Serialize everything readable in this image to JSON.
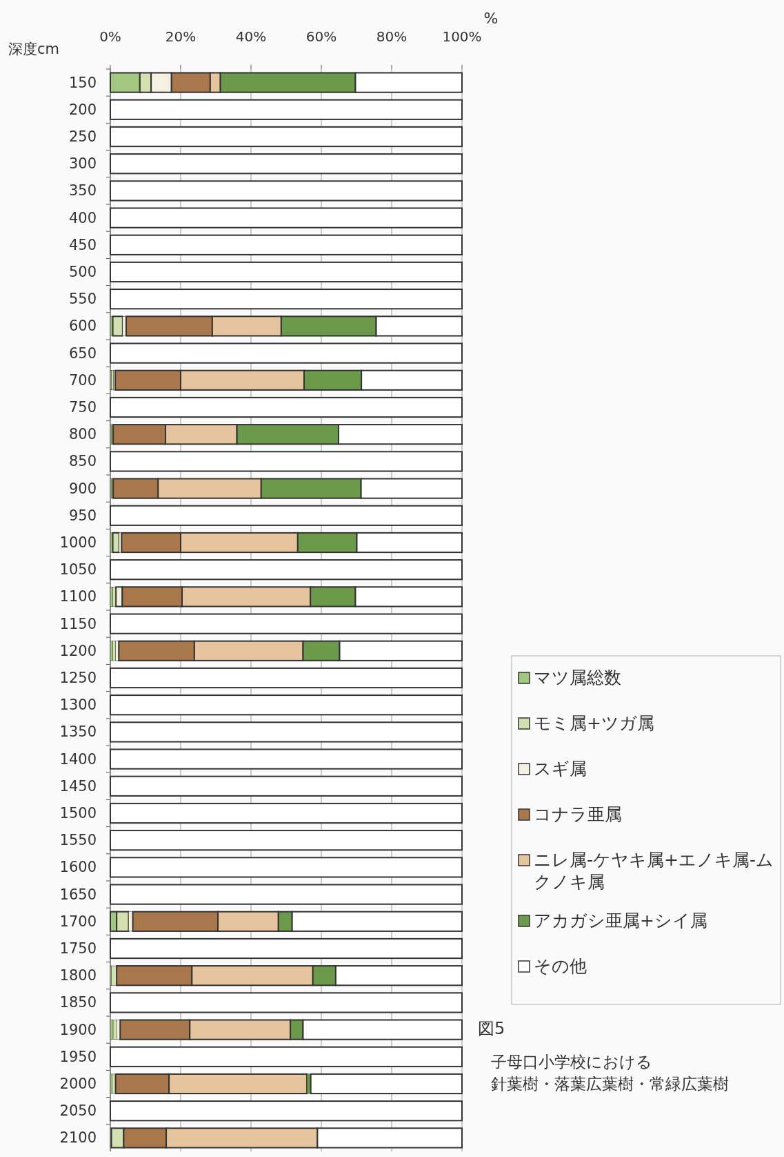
{
  "chart_data": {
    "type": "bar",
    "orientation": "horizontal",
    "stacked": true,
    "xlabel": "%",
    "ylabel": "深度cm",
    "categories": [
      "150",
      "200",
      "250",
      "300",
      "350",
      "400",
      "450",
      "500",
      "550",
      "600",
      "650",
      "700",
      "750",
      "800",
      "850",
      "900",
      "950",
      "1000",
      "1050",
      "1100",
      "1150",
      "1200",
      "1250",
      "1300",
      "1350",
      "1400",
      "1450",
      "1500",
      "1550",
      "1600",
      "1650",
      "1700",
      "1750",
      "1800",
      "1850",
      "1900",
      "1950",
      "2000",
      "2050",
      "2100"
    ],
    "xlim": [
      0,
      100
    ],
    "xticks": [
      {
        "value": 0,
        "label": "0%"
      },
      {
        "value": 20,
        "label": "20%"
      },
      {
        "value": 40,
        "label": "40%"
      },
      {
        "value": 60,
        "label": "60%"
      },
      {
        "value": 80,
        "label": "80%"
      },
      {
        "value": 100,
        "label": "100%"
      }
    ],
    "grid": "x",
    "legend": "right",
    "series": [
      {
        "name": "マツ属総数",
        "color": "#a3c77e",
        "values": [
          8.4,
          0,
          0,
          0,
          0,
          0,
          0,
          0,
          0,
          0.7,
          0,
          0.3,
          0,
          0.4,
          0,
          0.4,
          0,
          0.7,
          0,
          0.7,
          0,
          0.7,
          0,
          0,
          0,
          0,
          0,
          0,
          0,
          0,
          0,
          1.8,
          0,
          0.3,
          0,
          0.8,
          0,
          0.5,
          0,
          0.3
        ]
      },
      {
        "name": "モミ属+ツガ属",
        "color": "#d3e0b0",
        "values": [
          3.2,
          0,
          0,
          0,
          0,
          0,
          0,
          0,
          0,
          2.8,
          0,
          0.6,
          0,
          0.4,
          0,
          0.4,
          0,
          1.8,
          0,
          0.9,
          0,
          0.8,
          0,
          0,
          0,
          0,
          0,
          0,
          0,
          0,
          0,
          3.4,
          0,
          1.5,
          0,
          1.0,
          0,
          1.0,
          0,
          3.5
        ]
      },
      {
        "name": "スギ属",
        "color": "#f4f1e2",
        "values": [
          5.8,
          0,
          0,
          0,
          0,
          0,
          0,
          0,
          0,
          1.0,
          0,
          0.5,
          0,
          0,
          0,
          0,
          0,
          0.7,
          0,
          1.8,
          0,
          0.9,
          0,
          0,
          0,
          0,
          0,
          0,
          0,
          0,
          0,
          1.2,
          0,
          0,
          0,
          1.0,
          0,
          0,
          0,
          0
        ]
      },
      {
        "name": "コナラ亜属",
        "color": "#a8774c",
        "values": [
          11.0,
          0,
          0,
          0,
          0,
          0,
          0,
          0,
          0,
          24.5,
          0,
          18.6,
          0,
          14.9,
          0,
          12.8,
          0,
          16.8,
          0,
          17.0,
          0,
          21.5,
          0,
          0,
          0,
          0,
          0,
          0,
          0,
          0,
          0,
          24.2,
          0,
          21.4,
          0,
          19.8,
          0,
          15.2,
          0,
          12.1
        ]
      },
      {
        "name": "ニレ属-ケヤキ属+エノキ属-ムクノキ属",
        "color": "#e6c59e",
        "values": [
          2.9,
          0,
          0,
          0,
          0,
          0,
          0,
          0,
          0,
          19.6,
          0,
          35.1,
          0,
          20.3,
          0,
          29.3,
          0,
          33.3,
          0,
          36.5,
          0,
          30.9,
          0,
          0,
          0,
          0,
          0,
          0,
          0,
          0,
          0,
          17.2,
          0,
          34.4,
          0,
          28.6,
          0,
          39.2,
          0,
          43.0
        ]
      },
      {
        "name": "アカガシ亜属+シイ属",
        "color": "#6b9a4b",
        "values": [
          38.4,
          0,
          0,
          0,
          0,
          0,
          0,
          0,
          0,
          27.0,
          0,
          16.3,
          0,
          28.9,
          0,
          28.4,
          0,
          16.8,
          0,
          12.8,
          0,
          10.4,
          0,
          0,
          0,
          0,
          0,
          0,
          0,
          0,
          0,
          3.9,
          0,
          6.5,
          0,
          3.6,
          0,
          1.1,
          0,
          0
        ]
      },
      {
        "name": "その他",
        "color": "#ffffff",
        "values": [
          30.3,
          100,
          100,
          100,
          100,
          100,
          100,
          100,
          100,
          24.4,
          100,
          28.6,
          100,
          35.1,
          100,
          28.7,
          100,
          29.9,
          100,
          30.3,
          100,
          34.8,
          100,
          100,
          100,
          100,
          100,
          100,
          100,
          100,
          100,
          48.3,
          100,
          35.9,
          100,
          45.2,
          100,
          43.0,
          100,
          41.1
        ]
      }
    ],
    "annotations": [
      "図5",
      "子母口小学校における",
      "針葉樹・落葉広葉樹・常緑広葉樹"
    ]
  }
}
